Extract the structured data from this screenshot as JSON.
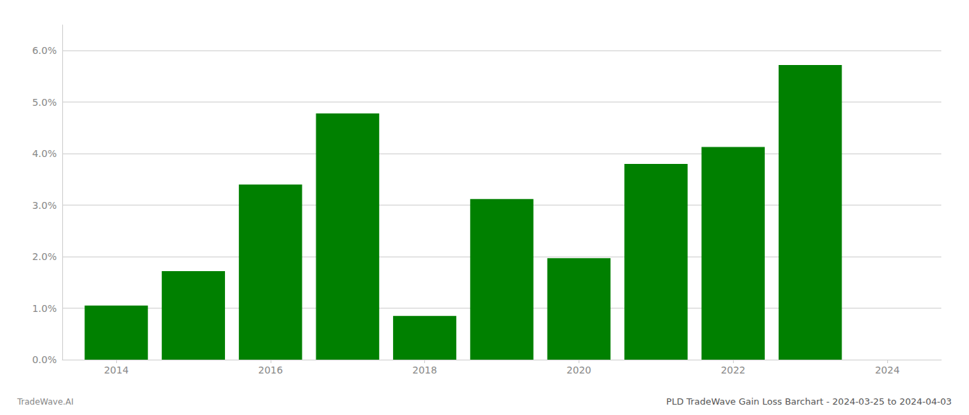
{
  "chart_data": {
    "type": "bar",
    "title": "PLD TradeWave Gain Loss Barchart - 2024-03-25 to 2024-04-03",
    "annotations": [
      "TradeWave.AI"
    ],
    "x": [
      2014,
      2015,
      2016,
      2017,
      2018,
      2019,
      2020,
      2021,
      2022,
      2023
    ],
    "values": [
      0.0105,
      0.0172,
      0.034,
      0.0478,
      0.0085,
      0.0312,
      0.0197,
      0.038,
      0.0413,
      0.0572
    ],
    "color": "#008000",
    "xlim": [
      2013.3,
      2024.7
    ],
    "xticks": [
      2014,
      2016,
      2018,
      2020,
      2022,
      2024
    ],
    "ylim": [
      0,
      0.065
    ],
    "yticks": [
      {
        "value": 0.0,
        "label": "0.0%"
      },
      {
        "value": 0.01,
        "label": "1.0%"
      },
      {
        "value": 0.02,
        "label": "2.0%"
      },
      {
        "value": 0.03,
        "label": "3.0%"
      },
      {
        "value": 0.04,
        "label": "4.0%"
      },
      {
        "value": 0.05,
        "label": "5.0%"
      },
      {
        "value": 0.06,
        "label": "6.0%"
      }
    ],
    "grid": true
  }
}
